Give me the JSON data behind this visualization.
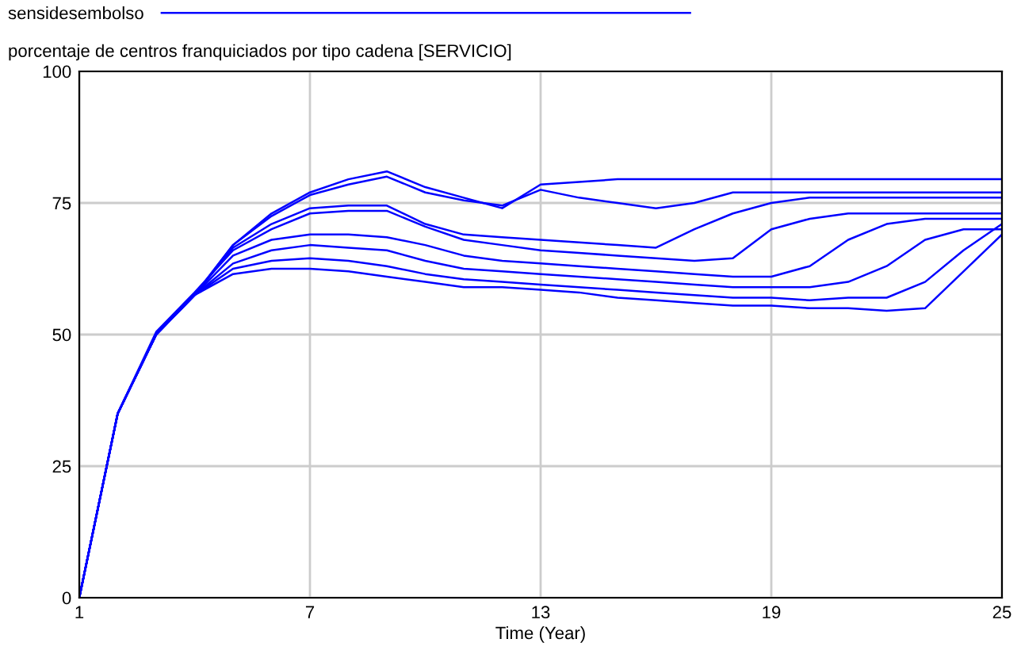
{
  "chart_data": {
    "type": "line",
    "title": "porcentaje de centros franquiciados por tipo cadena [SERVICIO]",
    "xlabel": "Time (Year)",
    "x": [
      1,
      2,
      3,
      4,
      5,
      6,
      7,
      8,
      9,
      10,
      11,
      12,
      13,
      14,
      15,
      16,
      17,
      18,
      19,
      20,
      21,
      22,
      23,
      24,
      25
    ],
    "xlim": [
      1,
      25
    ],
    "xticks": [
      1,
      7,
      13,
      19,
      25
    ],
    "ylim": [
      0,
      100
    ],
    "yticks": [
      0,
      25,
      50,
      75,
      100
    ],
    "grid": true,
    "legend": "top",
    "marker": "none",
    "line_style": "solid",
    "series": [
      {
        "name": "sensidesembolso",
        "color": "#0000ff",
        "values": [
          0,
          35,
          50,
          57.5,
          67,
          73,
          77,
          79.5,
          81,
          78,
          76,
          74,
          78.5,
          79,
          79.5,
          79.5,
          79.5,
          79.5,
          79.5,
          79.5,
          79.5,
          79.5,
          79.5,
          79.5,
          79.5
        ]
      },
      {
        "color": "#0000ff",
        "values": [
          0,
          35,
          50,
          57.5,
          67,
          72.5,
          76.5,
          78.5,
          80,
          77,
          75.5,
          74.5,
          77.5,
          76,
          75,
          74,
          75,
          77,
          77,
          77,
          77,
          77,
          77,
          77,
          77
        ]
      },
      {
        "color": "#0000ff",
        "values": [
          0,
          35,
          50,
          57.5,
          66.5,
          71,
          74,
          74.5,
          74.5,
          71,
          69,
          68.5,
          68,
          67.5,
          67,
          66.5,
          70,
          73,
          75,
          76,
          76,
          76,
          76,
          76,
          76
        ]
      },
      {
        "color": "#0000ff",
        "values": [
          0,
          35,
          50.5,
          58,
          66,
          70,
          73,
          73.5,
          73.5,
          70.5,
          68,
          67,
          66,
          65.5,
          65,
          64.5,
          64,
          64.5,
          70,
          72,
          73,
          73,
          73,
          73,
          73
        ]
      },
      {
        "color": "#0000ff",
        "values": [
          0,
          35,
          50,
          57.5,
          65,
          68,
          69,
          69,
          68.5,
          67,
          65,
          64,
          63.5,
          63,
          62.5,
          62,
          61.5,
          61,
          61,
          63,
          68,
          71,
          72,
          72,
          72
        ]
      },
      {
        "color": "#0000ff",
        "values": [
          0,
          35,
          50,
          57.5,
          63.5,
          66,
          67,
          66.5,
          66,
          64,
          62.5,
          62,
          61.5,
          61,
          60.5,
          60,
          59.5,
          59,
          59,
          59,
          60,
          63,
          68,
          70,
          70
        ]
      },
      {
        "color": "#0000ff",
        "values": [
          0,
          35,
          50,
          57.5,
          62.5,
          64,
          64.5,
          64,
          63,
          61.5,
          60.5,
          60,
          59.5,
          59,
          58.5,
          58,
          57.5,
          57,
          57,
          56.5,
          57,
          57,
          60,
          66,
          71
        ]
      },
      {
        "color": "#0000ff",
        "values": [
          0,
          35,
          50,
          57.5,
          61.5,
          62.5,
          62.5,
          62,
          61,
          60,
          59,
          59,
          58.5,
          58,
          57,
          56.5,
          56,
          55.5,
          55.5,
          55,
          55,
          54.5,
          55,
          62,
          69
        ]
      }
    ]
  }
}
